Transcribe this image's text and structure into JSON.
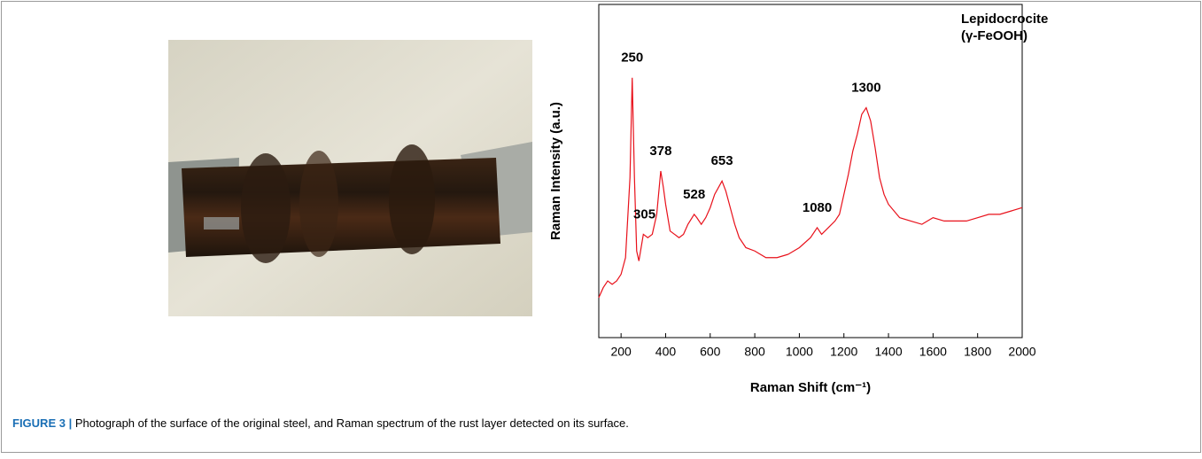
{
  "chart_data": {
    "type": "line",
    "y_label": "Raman Intensity (a.u.)",
    "x_label": "Raman Shift (cm⁻¹)",
    "title": [
      "Lepidocrocite",
      "(γ-FeOOH)"
    ],
    "series": [
      {
        "color": "#e8101a",
        "x": [
          100,
          120,
          140,
          160,
          180,
          200,
          220,
          240,
          250,
          260,
          270,
          280,
          300,
          320,
          340,
          360,
          378,
          390,
          400,
          420,
          440,
          460,
          480,
          500,
          528,
          540,
          560,
          580,
          600,
          620,
          653,
          670,
          690,
          710,
          730,
          760,
          800,
          850,
          900,
          950,
          1000,
          1050,
          1080,
          1100,
          1130,
          1160,
          1180,
          1200,
          1220,
          1240,
          1260,
          1280,
          1300,
          1320,
          1340,
          1360,
          1380,
          1400,
          1450,
          1500,
          1550,
          1600,
          1650,
          1700,
          1750,
          1800,
          1850,
          1900,
          1950,
          2000
        ],
        "values": [
          12,
          15,
          17,
          16,
          17,
          19,
          24,
          48,
          78,
          48,
          26,
          23,
          31,
          30,
          31,
          37,
          50,
          45,
          40,
          32,
          31,
          30,
          31,
          34,
          37,
          36,
          34,
          36,
          39,
          43,
          47,
          44,
          39,
          34,
          30,
          27,
          26,
          24,
          24,
          25,
          27,
          30,
          33,
          31,
          33,
          35,
          37,
          43,
          49,
          56,
          61,
          67,
          69,
          65,
          57,
          48,
          43,
          40,
          36,
          35,
          34,
          36,
          35,
          35,
          35,
          36,
          37,
          37,
          38,
          39
        ]
      }
    ],
    "annotations": [
      {
        "text": "250",
        "x": 250
      },
      {
        "text": "305",
        "x": 305
      },
      {
        "text": "378",
        "x": 378
      },
      {
        "text": "528",
        "x": 528
      },
      {
        "text": "653",
        "x": 653
      },
      {
        "text": "1080",
        "x": 1080
      },
      {
        "text": "1300",
        "x": 1300
      }
    ],
    "xlim": [
      100,
      2000
    ],
    "xticks": [
      200,
      400,
      600,
      800,
      1000,
      1200,
      1400,
      1600,
      1800,
      2000
    ],
    "ylim": [
      0,
      100
    ]
  },
  "caption": {
    "label": "FIGURE 3 |",
    "text": " Photograph of the surface of the original steel, and Raman spectrum of the rust layer detected on its surface."
  }
}
